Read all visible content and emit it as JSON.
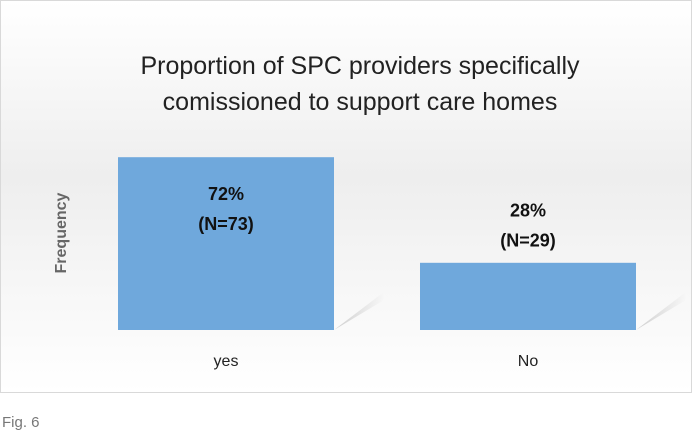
{
  "chart_data": {
    "type": "bar",
    "title": "Proportion of SPC providers specifically comissioned to support care homes",
    "y_label": "Frequency",
    "categories": [
      "yes",
      "No"
    ],
    "values": [
      72,
      28
    ],
    "value_labels": [
      "72%",
      "28%"
    ],
    "n_labels": [
      "(N=73)",
      "(N=29)"
    ],
    "color": "#6fa8dc"
  },
  "caption": "Fig. 6"
}
